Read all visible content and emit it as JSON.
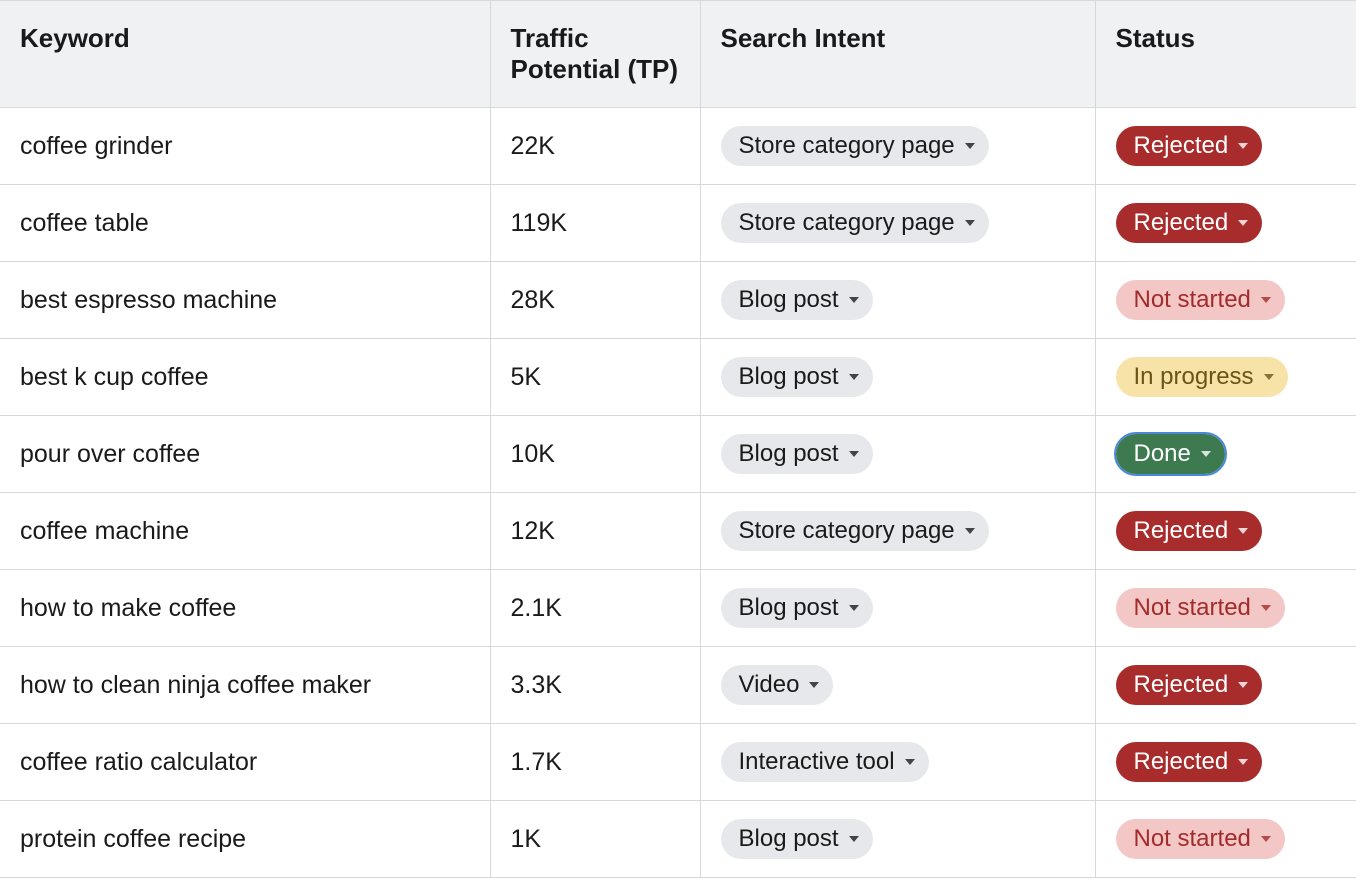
{
  "table": {
    "header_bg": "#f0f1f3",
    "header_text_color": "#1a1a1a",
    "border_color": "#d8d8d8",
    "cell_text_color": "#1a1a1a",
    "font_size_header": 26,
    "font_size_cell": 25,
    "font_size_pill": 24,
    "columns": [
      {
        "key": "keyword",
        "label": "Keyword"
      },
      {
        "key": "tp",
        "label": "Traffic Potential (TP)"
      },
      {
        "key": "intent",
        "label": "Search Intent"
      },
      {
        "key": "status",
        "label": "Status"
      }
    ],
    "intent_pill": {
      "bg": "#e6e8ec",
      "text": "#1a1a1a"
    },
    "status_styles": {
      "Rejected": {
        "bg": "#a92c2c",
        "text": "#ffffff"
      },
      "Not started": {
        "bg": "#f3c7c5",
        "text": "#a22c2c"
      },
      "In progress": {
        "bg": "#f7e2a8",
        "text": "#6b5516"
      },
      "Done": {
        "bg": "#3e7a50",
        "text": "#ffffff",
        "highlight": true
      }
    },
    "rows": [
      {
        "keyword": "coffee grinder",
        "tp": "22K",
        "intent": "Store category page",
        "status": "Rejected"
      },
      {
        "keyword": "coffee table",
        "tp": "119K",
        "intent": "Store category page",
        "status": "Rejected"
      },
      {
        "keyword": "best espresso machine",
        "tp": "28K",
        "intent": "Blog post",
        "status": "Not started"
      },
      {
        "keyword": "best k cup coffee",
        "tp": "5K",
        "intent": "Blog post",
        "status": "In progress"
      },
      {
        "keyword": "pour over coffee",
        "tp": "10K",
        "intent": "Blog post",
        "status": "Done"
      },
      {
        "keyword": "coffee machine",
        "tp": "12K",
        "intent": "Store category page",
        "status": "Rejected"
      },
      {
        "keyword": "how to make coffee",
        "tp": "2.1K",
        "intent": "Blog post",
        "status": "Not started"
      },
      {
        "keyword": "how to clean ninja coffee maker",
        "tp": "3.3K",
        "intent": "Video",
        "status": "Rejected"
      },
      {
        "keyword": "coffee ratio calculator",
        "tp": "1.7K",
        "intent": "Interactive tool",
        "status": "Rejected"
      },
      {
        "keyword": "protein coffee recipe",
        "tp": "1K",
        "intent": "Blog post",
        "status": "Not started"
      }
    ]
  }
}
